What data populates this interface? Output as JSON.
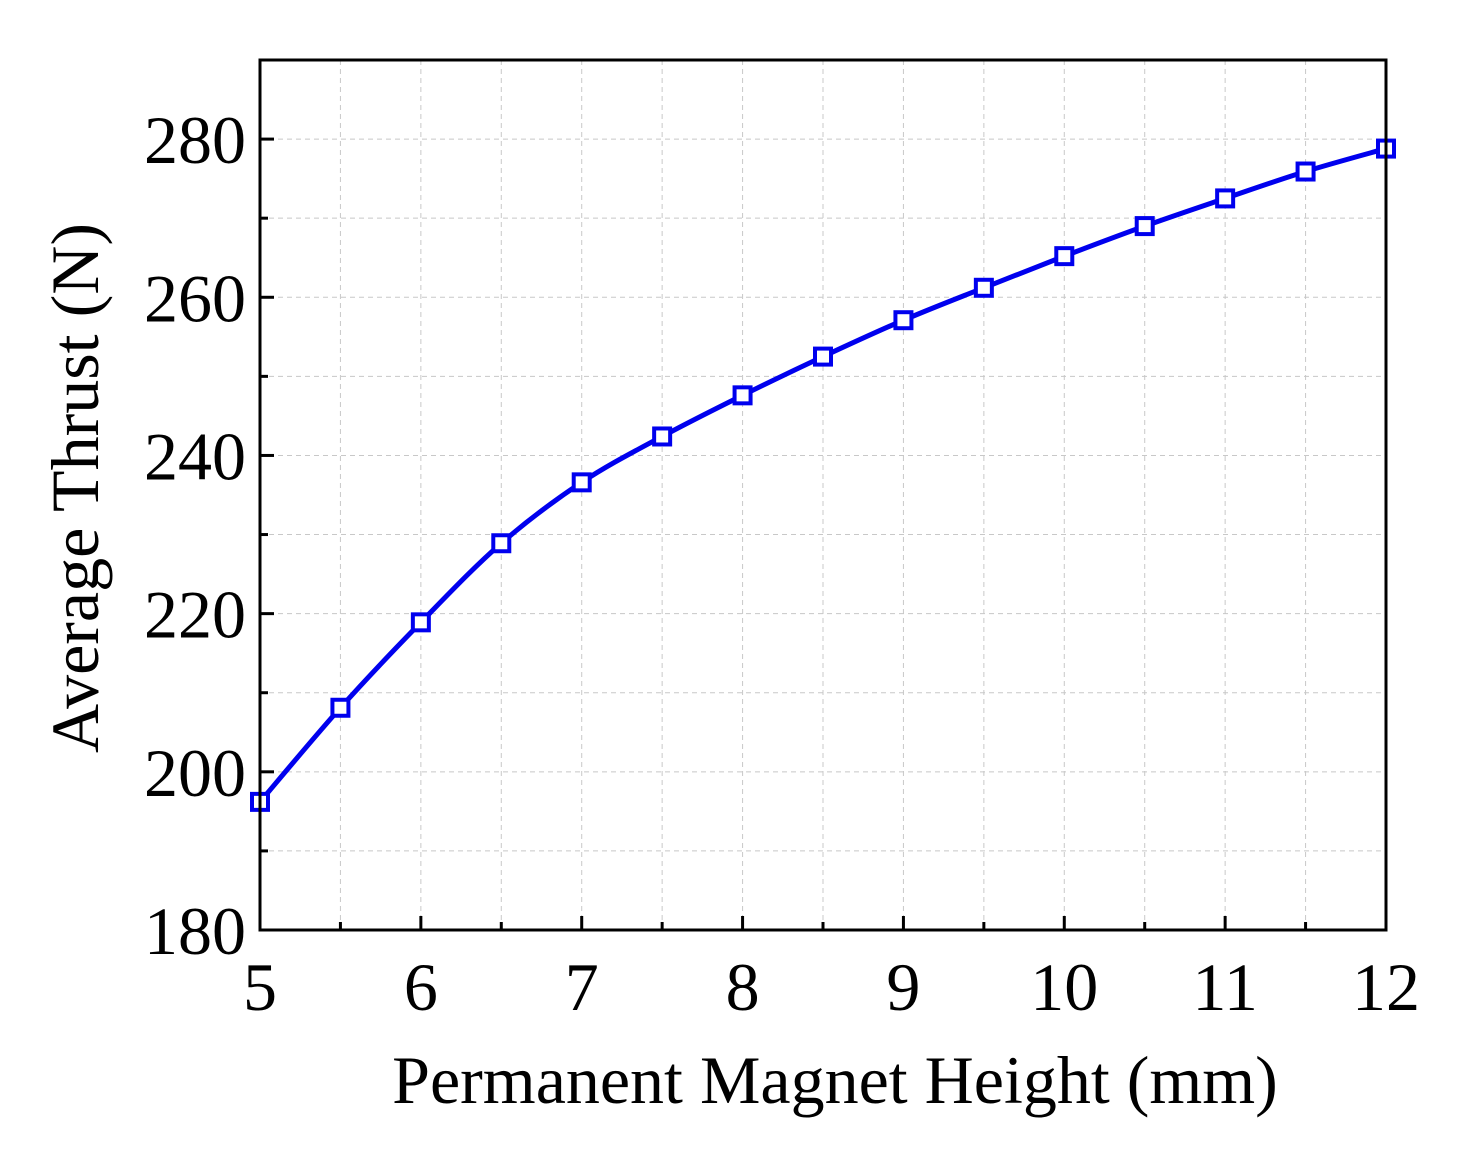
{
  "chart_data": {
    "type": "line",
    "xlabel": "Permanent Magnet Height (mm)",
    "ylabel": "Average Thrust (N)",
    "xlim": [
      5,
      12
    ],
    "ylim": [
      180,
      290
    ],
    "xticks": [
      5,
      6,
      7,
      8,
      9,
      10,
      11,
      12
    ],
    "yticks": [
      180,
      200,
      220,
      240,
      260,
      280
    ],
    "grid": true,
    "legend": "none",
    "marker": "square",
    "color": "#0000ee",
    "series": [
      {
        "x": [
          5,
          5.5,
          6,
          6.5,
          7,
          7.5,
          8,
          8.5,
          9,
          9.5,
          10,
          10.5,
          11,
          11.5,
          12
        ],
        "values": [
          196.2,
          208.1,
          218.9,
          228.9,
          236.6,
          242.4,
          247.6,
          252.5,
          257.1,
          261.2,
          265.2,
          269.0,
          272.5,
          275.9,
          278.8
        ]
      }
    ]
  }
}
